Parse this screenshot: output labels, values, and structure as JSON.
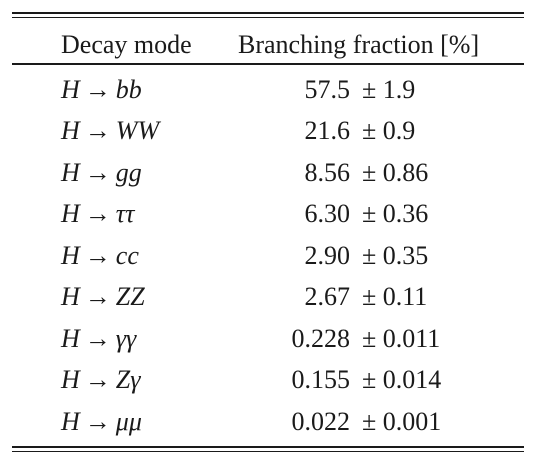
{
  "table": {
    "headers": {
      "decay_mode": "Decay mode",
      "branching_fraction": "Branching fraction [%]"
    },
    "arrow": "→",
    "rows": [
      {
        "parent": "H",
        "products": "bb",
        "value": "57.5",
        "uncertainty": "± 1.9"
      },
      {
        "parent": "H",
        "products": "WW",
        "value": "21.6",
        "uncertainty": "± 0.9"
      },
      {
        "parent": "H",
        "products": "gg",
        "value": "8.56",
        "uncertainty": "± 0.86"
      },
      {
        "parent": "H",
        "products": "ττ",
        "value": "6.30",
        "uncertainty": "± 0.36"
      },
      {
        "parent": "H",
        "products": "cc",
        "value": "2.90",
        "uncertainty": "± 0.35"
      },
      {
        "parent": "H",
        "products": "ZZ",
        "value": "2.67",
        "uncertainty": "± 0.11"
      },
      {
        "parent": "H",
        "products": "γγ",
        "value": "0.228",
        "uncertainty": "± 0.011"
      },
      {
        "parent": "H",
        "products": "Zγ",
        "value": "0.155",
        "uncertainty": "± 0.014"
      },
      {
        "parent": "H",
        "products": "μμ",
        "value": "0.022",
        "uncertainty": "± 0.001"
      }
    ]
  }
}
